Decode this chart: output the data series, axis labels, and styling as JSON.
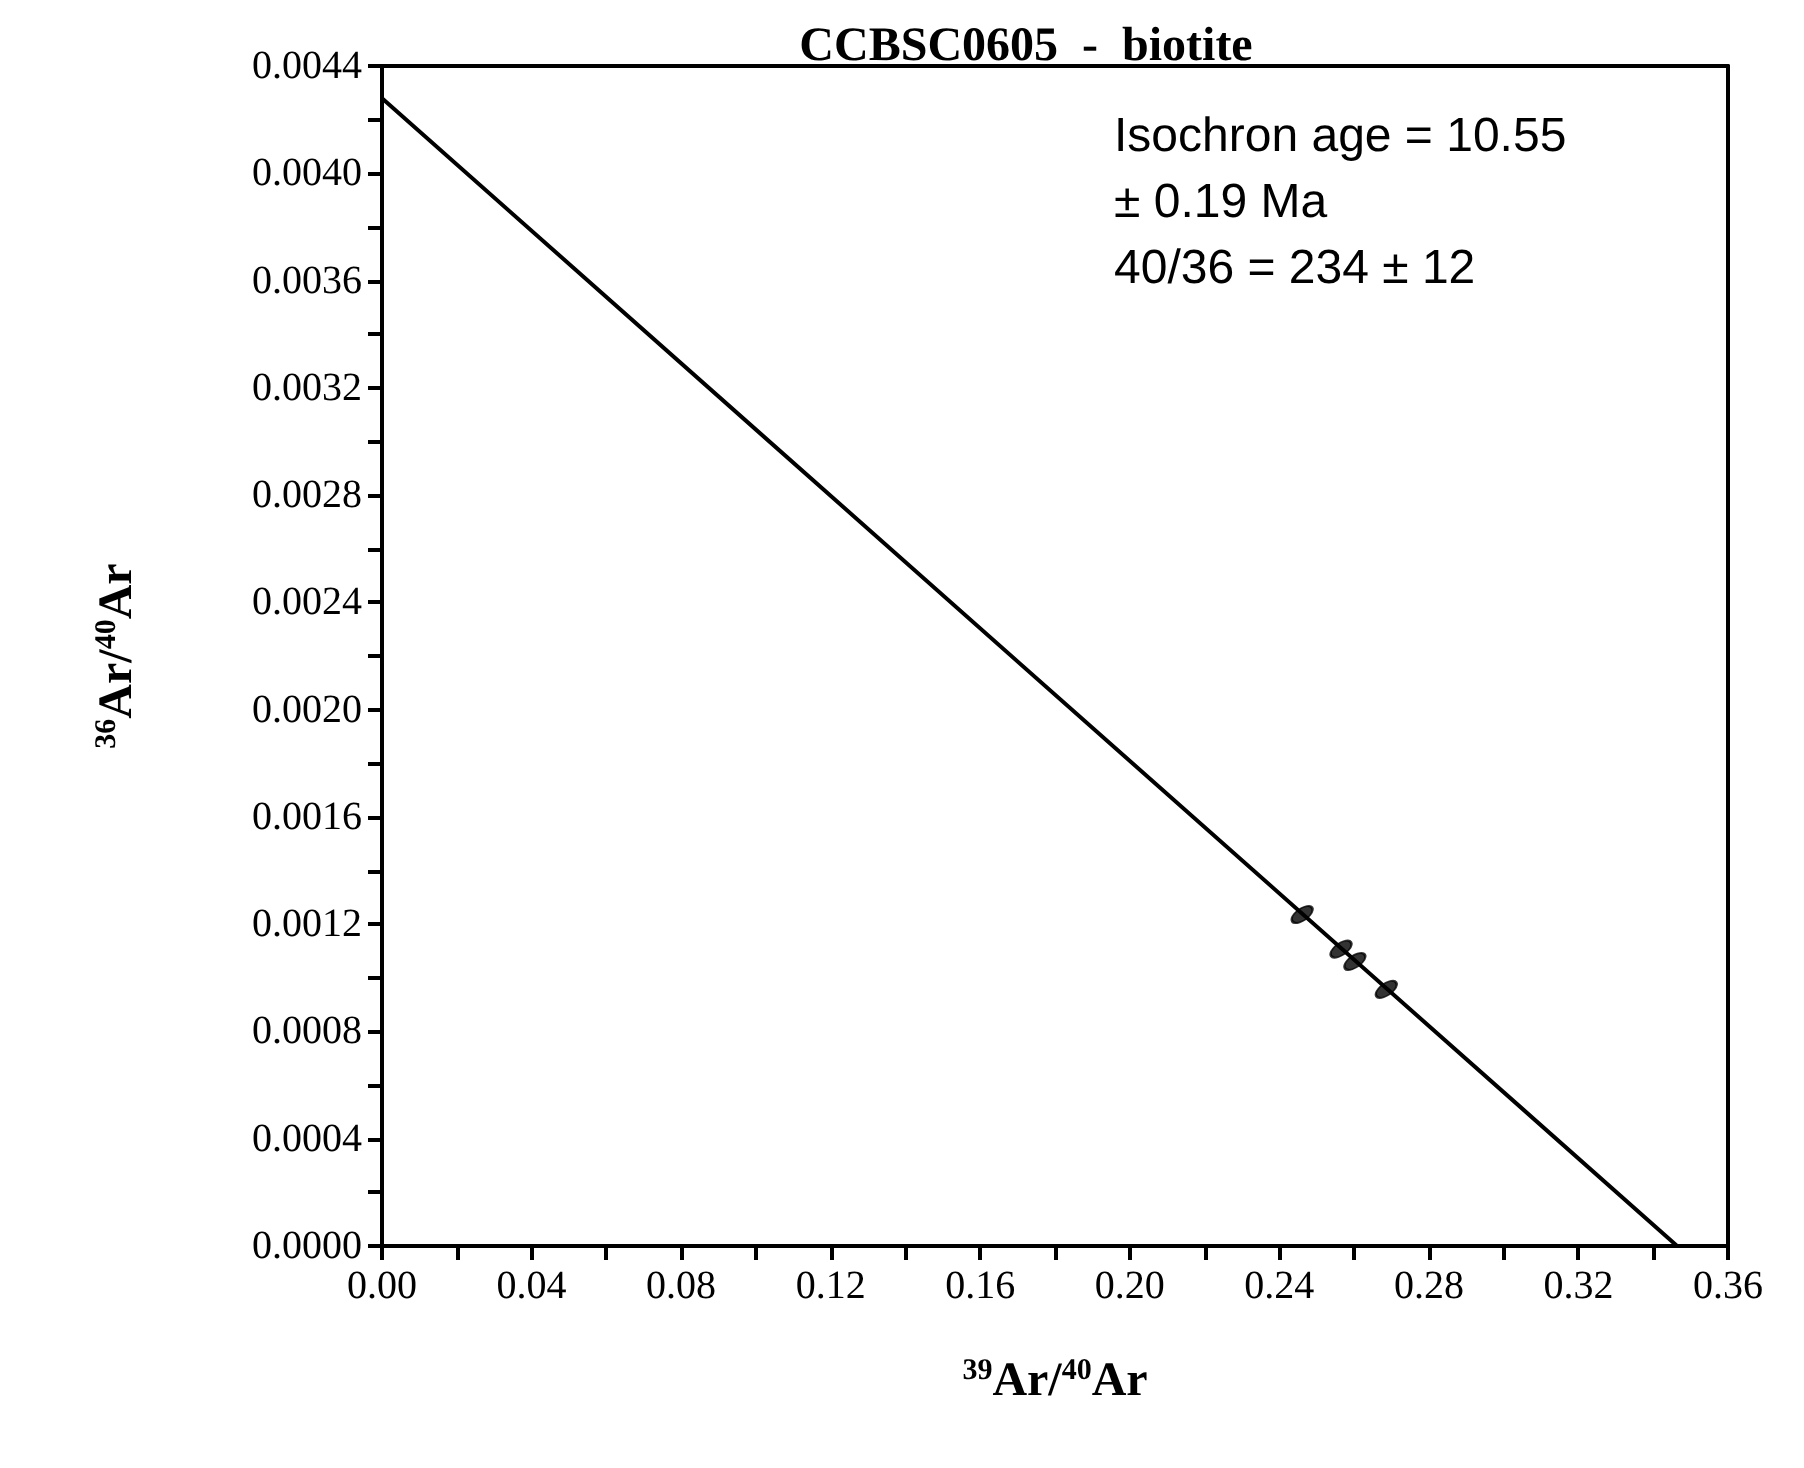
{
  "chart_data": {
    "type": "scatter",
    "title": "CCBSC0605  -  biotite",
    "xlabel": "$^{39}$Ar/$^{40}$Ar",
    "ylabel": "$^{36}$Ar/$^{40}$Ar",
    "annotations": [
      "Isochron age = 10.55",
      "± 0.19 Ma",
      "40/36 = 234 ± 12"
    ],
    "series": [
      {
        "color": "#000000",
        "marker": "circle",
        "x": [
          0.2461,
          0.2565,
          0.2602,
          0.2686
        ],
        "values": [
          0.001236,
          0.001107,
          0.001061,
          0.000957
        ]
      },
      {
        "type": "line",
        "color": "#000000",
        "x": [
          0,
          0.3464
        ],
        "values": [
          0.00428,
          0
        ]
      }
    ],
    "grid": false,
    "xlim": [
      0,
      0.36
    ],
    "ylim": [
      0,
      0.0044
    ],
    "xticks": [
      {
        "value": 0,
        "label": "0.00"
      },
      {
        "value": 0.02,
        "label": null
      },
      {
        "value": 0.04,
        "label": "0.04"
      },
      {
        "value": 0.06,
        "label": null
      },
      {
        "value": 0.08,
        "label": "0.08"
      },
      {
        "value": 0.1,
        "label": null
      },
      {
        "value": 0.12,
        "label": "0.12"
      },
      {
        "value": 0.14,
        "label": null
      },
      {
        "value": 0.16,
        "label": "0.16"
      },
      {
        "value": 0.18,
        "label": null
      },
      {
        "value": 0.2,
        "label": "0.20"
      },
      {
        "value": 0.22,
        "label": null
      },
      {
        "value": 0.24,
        "label": "0.24"
      },
      {
        "value": 0.26,
        "label": null
      },
      {
        "value": 0.28,
        "label": "0.28"
      },
      {
        "value": 0.3,
        "label": null
      },
      {
        "value": 0.32,
        "label": "0.32"
      },
      {
        "value": 0.34,
        "label": null
      },
      {
        "value": 0.36,
        "label": "0.36"
      }
    ],
    "yticks": [
      {
        "value": 0,
        "label": "0.0000"
      },
      {
        "value": 0.0002,
        "label": null
      },
      {
        "value": 0.0004,
        "label": "0.0004"
      },
      {
        "value": 0.0006,
        "label": null
      },
      {
        "value": 0.0008,
        "label": "0.0008"
      },
      {
        "value": 0.001,
        "label": null
      },
      {
        "value": 0.0012,
        "label": "0.0012"
      },
      {
        "value": 0.0014,
        "label": null
      },
      {
        "value": 0.0016,
        "label": "0.0016"
      },
      {
        "value": 0.0018,
        "label": null
      },
      {
        "value": 0.002,
        "label": "0.0020"
      },
      {
        "value": 0.0022,
        "label": null
      },
      {
        "value": 0.0024,
        "label": "0.0024"
      },
      {
        "value": 0.0026,
        "label": null
      },
      {
        "value": 0.0028,
        "label": "0.0028"
      },
      {
        "value": 0.003,
        "label": null
      },
      {
        "value": 0.0032,
        "label": "0.0032"
      },
      {
        "value": 0.0034,
        "label": null
      },
      {
        "value": 0.0036,
        "label": "0.0036"
      },
      {
        "value": 0.0038,
        "label": null
      },
      {
        "value": 0.004,
        "label": "0.0040"
      },
      {
        "value": 0.0042,
        "label": null
      },
      {
        "value": 0.0044,
        "label": "0.0044"
      }
    ]
  }
}
